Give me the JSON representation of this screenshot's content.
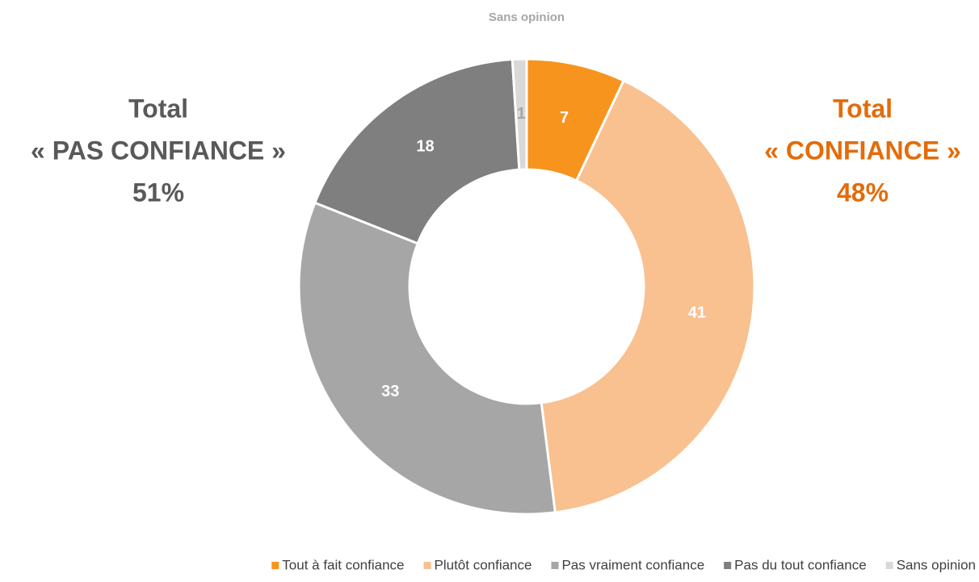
{
  "chart_data": {
    "type": "donut",
    "categories": [
      "Tout à fait confiance",
      "Plutôt confiance",
      "Pas vraiment confiance",
      "Pas du tout confiance",
      "Sans opinion"
    ],
    "values": [
      7,
      41,
      33,
      18,
      1
    ],
    "colors": [
      "#f7941d",
      "#f9c090",
      "#a6a6a6",
      "#7f7f7f",
      "#d9d9d9"
    ],
    "legend": "bottom",
    "annotations": [
      {
        "lines": [
          "Sans opinion"
        ],
        "color": "#a6a6a6"
      },
      {
        "lines": [
          "Total",
          "« PAS CONFIANCE »",
          "51%"
        ],
        "color": "#595959"
      },
      {
        "lines": [
          "Total",
          "« CONFIANCE »",
          "48%"
        ],
        "color": "#e36c0a"
      }
    ]
  }
}
